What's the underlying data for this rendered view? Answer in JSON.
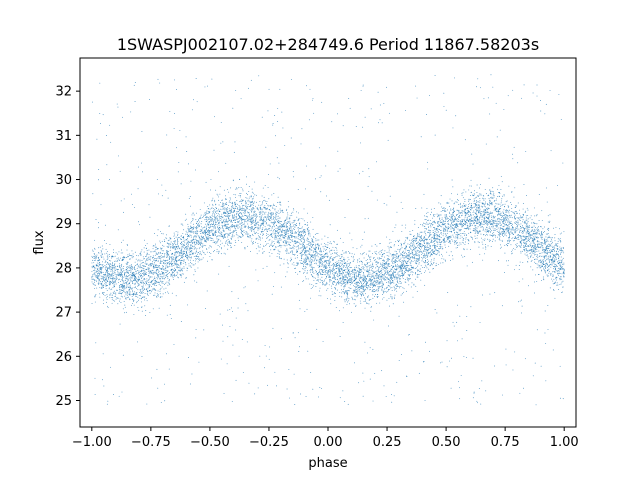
{
  "chart_data": {
    "type": "scatter",
    "title": "1SWASPJ002107.02+284749.6 Period 11867.58203s",
    "xlabel": "phase",
    "ylabel": "flux",
    "xlim": [
      -1.05,
      1.05
    ],
    "ylim": [
      24.4,
      32.75
    ],
    "x_ticks": [
      -1.0,
      -0.75,
      -0.5,
      -0.25,
      0.0,
      0.25,
      0.5,
      0.75,
      1.0
    ],
    "x_tick_labels": [
      "−1.00",
      "−0.75",
      "−0.50",
      "−0.25",
      "0.00",
      "0.25",
      "0.50",
      "0.75",
      "1.00"
    ],
    "y_ticks": [
      25,
      26,
      27,
      28,
      29,
      30,
      31,
      32
    ],
    "y_tick_labels": [
      "25",
      "26",
      "27",
      "28",
      "29",
      "30",
      "31",
      "32"
    ],
    "grid": false,
    "marker_color": "#1f77b4",
    "series": [
      {
        "phase_range": [
          -1.0,
          1.0
        ],
        "model": {
          "mean_flux": 28.45,
          "amplitude": 0.7,
          "minimum_phase": [
            -0.85,
            0.15
          ],
          "maximum_phase": [
            -0.35,
            0.65
          ],
          "scatter_sigma": 0.3,
          "outlier_fraction": 0.07,
          "outlier_flux_range": [
            24.9,
            32.4
          ]
        },
        "n_points": 9000
      }
    ]
  }
}
